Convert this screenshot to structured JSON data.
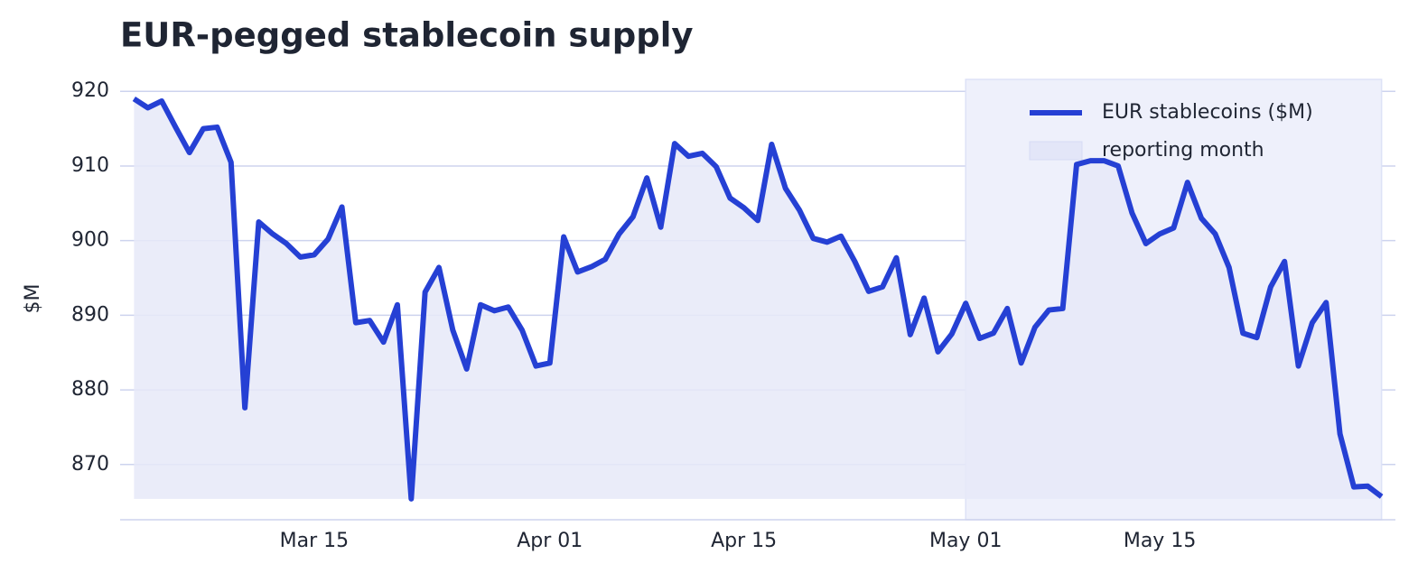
{
  "chart_data": {
    "type": "line",
    "title": "EUR-pegged stablecoin supply",
    "y_label": "$M",
    "x": [
      "03-02",
      "03-03",
      "03-04",
      "03-05",
      "03-06",
      "03-07",
      "03-08",
      "03-09",
      "03-10",
      "03-11",
      "03-12",
      "03-13",
      "03-14",
      "03-15",
      "03-16",
      "03-17",
      "03-18",
      "03-19",
      "03-20",
      "03-21",
      "03-22",
      "03-23",
      "03-24",
      "03-25",
      "03-26",
      "03-27",
      "03-28",
      "03-29",
      "03-30",
      "03-31",
      "04-01",
      "04-02",
      "04-03",
      "04-04",
      "04-05",
      "04-06",
      "04-07",
      "04-08",
      "04-09",
      "04-10",
      "04-11",
      "04-12",
      "04-13",
      "04-14",
      "04-15",
      "04-16",
      "04-17",
      "04-18",
      "04-19",
      "04-20",
      "04-21",
      "04-22",
      "04-23",
      "04-24",
      "04-25",
      "04-26",
      "04-27",
      "04-28",
      "04-29",
      "04-30",
      "05-01",
      "05-02",
      "05-03",
      "05-04",
      "05-05",
      "05-06",
      "05-07",
      "05-08",
      "05-09",
      "05-10",
      "05-11",
      "05-12",
      "05-13",
      "05-14",
      "05-15",
      "05-16",
      "05-17",
      "05-18",
      "05-19",
      "05-20",
      "05-21",
      "05-22",
      "05-23",
      "05-24",
      "05-25",
      "05-26",
      "05-27",
      "05-28",
      "05-29",
      "05-30",
      "05-31"
    ],
    "series": [
      {
        "name": "EUR stablecoins ($M)",
        "color": "#2540d4",
        "fill": "#e6e9f8",
        "values": [
          919.0,
          917.8,
          918.7,
          915.2,
          911.8,
          915.0,
          915.2,
          910.5,
          877.6,
          902.5,
          900.9,
          899.6,
          897.8,
          898.1,
          900.2,
          904.5,
          889.0,
          889.3,
          886.4,
          891.4,
          865.4,
          893.1,
          896.4,
          888.0,
          882.8,
          891.4,
          890.6,
          891.1,
          888.0,
          883.2,
          883.6,
          900.5,
          895.8,
          896.5,
          897.5,
          900.9,
          903.2,
          908.4,
          901.8,
          913.0,
          911.3,
          911.7,
          909.9,
          905.7,
          904.4,
          902.7,
          912.9,
          907.0,
          904.1,
          900.3,
          899.8,
          900.6,
          897.2,
          893.2,
          893.8,
          897.7,
          887.4,
          892.3,
          885.1,
          887.5,
          891.6,
          886.9,
          887.6,
          890.9,
          883.6,
          888.4,
          890.7,
          890.9,
          910.2,
          910.7,
          910.7,
          910.0,
          903.7,
          899.6,
          900.9,
          901.7,
          907.8,
          903.0,
          900.9,
          896.4,
          887.6,
          887.0,
          893.8,
          897.2,
          883.2,
          889.0,
          891.7,
          874.1,
          867.0,
          867.1,
          865.7
        ]
      }
    ],
    "highlight": {
      "label": "reporting month",
      "xlim": [
        "05-01",
        "05-31"
      ],
      "color": "#eef0fb"
    },
    "xlim": [
      "03-01",
      "06-01"
    ],
    "xticks": [
      {
        "value": "03-15",
        "label": "Mar 15"
      },
      {
        "value": "04-01",
        "label": "Apr 01"
      },
      {
        "value": "04-15",
        "label": "Apr 15"
      },
      {
        "value": "05-01",
        "label": "May 01"
      },
      {
        "value": "05-15",
        "label": "May 15"
      }
    ],
    "ylim": [
      862.6,
      921.6
    ],
    "yticks": [
      870,
      880,
      890,
      900,
      910,
      920
    ],
    "grid": true,
    "legend": "upper right"
  }
}
